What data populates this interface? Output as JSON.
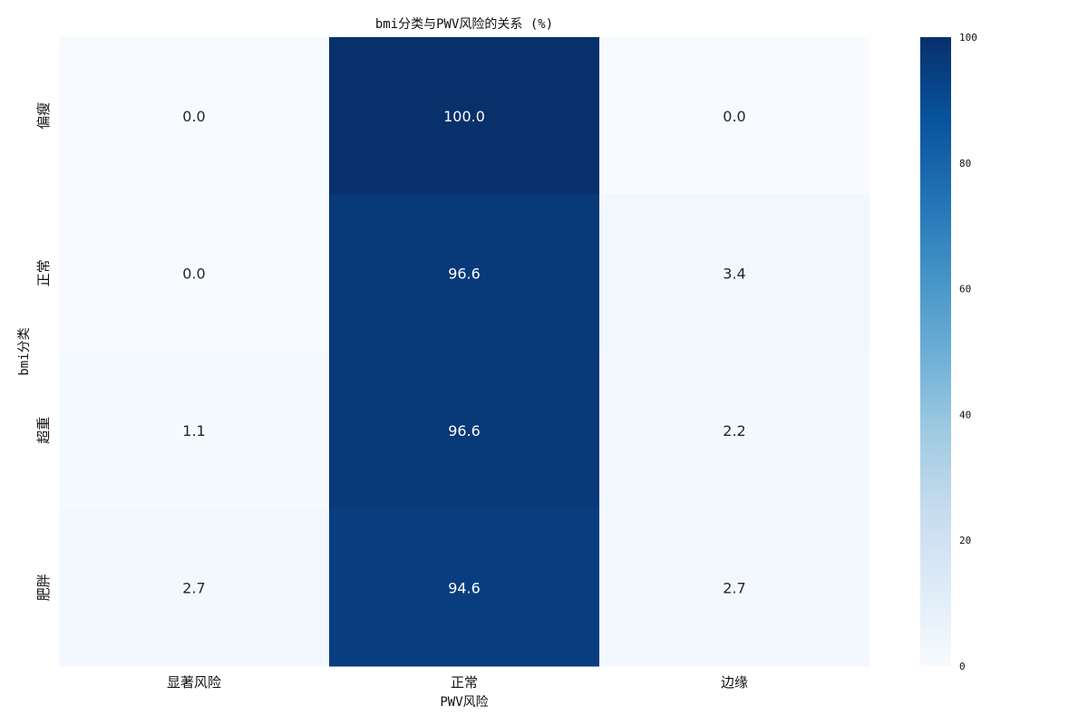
{
  "chart_data": {
    "type": "heatmap",
    "title": "bmi分类与PWV风险的关系 (%)",
    "xlabel": "PWV风险",
    "ylabel": "bmi分类",
    "x_categories": [
      "显著风险",
      "正常",
      "边缘"
    ],
    "y_categories": [
      "偏瘦",
      "正常",
      "超重",
      "肥胖"
    ],
    "values": [
      [
        0.0,
        100.0,
        0.0
      ],
      [
        0.0,
        96.6,
        3.4
      ],
      [
        1.1,
        96.6,
        2.2
      ],
      [
        2.7,
        94.6,
        2.7
      ]
    ],
    "value_labels": [
      [
        "0.0",
        "100.0",
        "0.0"
      ],
      [
        "0.0",
        "96.6",
        "3.4"
      ],
      [
        "1.1",
        "96.6",
        "2.2"
      ],
      [
        "2.7",
        "94.6",
        "2.7"
      ]
    ],
    "colormap": "Blues",
    "vmin": 0,
    "vmax": 100,
    "colorbar_ticks": [
      "0",
      "20",
      "40",
      "60",
      "80",
      "100"
    ],
    "grid": false
  }
}
